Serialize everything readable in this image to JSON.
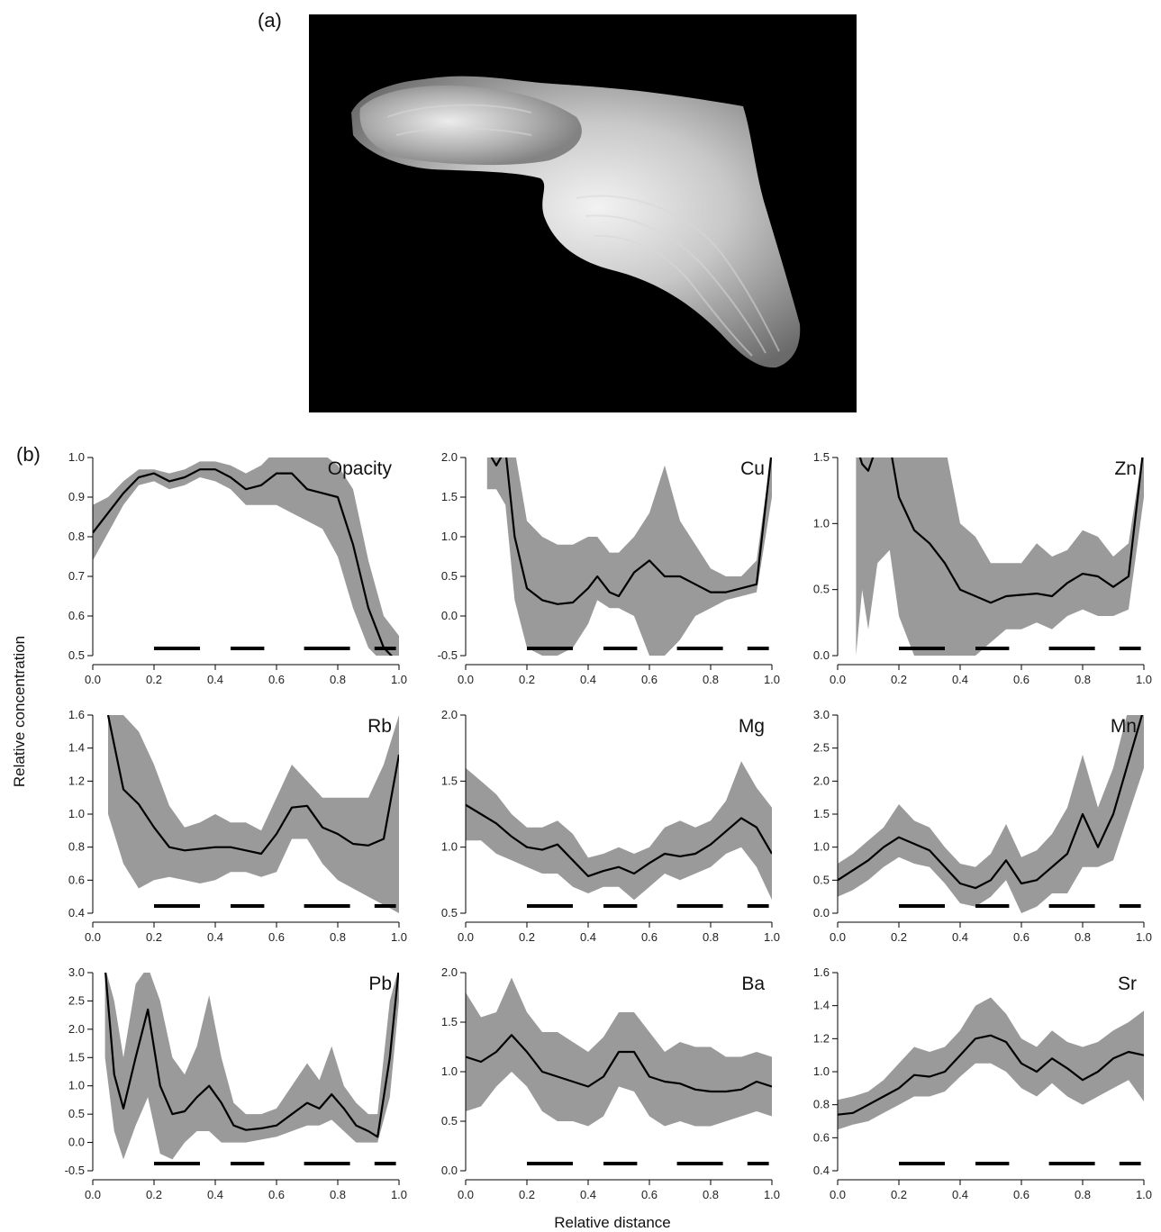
{
  "figure": {
    "label_a": "(a)",
    "label_b": "(b)",
    "xlabel": "Relative distance",
    "ylabel": "Relative concentration",
    "colors": {
      "band": "#9a9a9a",
      "line": "#000000",
      "photo_bg": "#000000"
    }
  },
  "photo": {
    "subject": "otolith section grayscale image",
    "icon": "otolith-image"
  },
  "chart_data": [
    {
      "type": "line",
      "title": "Opacity",
      "xlim": [
        0,
        1
      ],
      "ylim": [
        0.5,
        1.0
      ],
      "yticks": [
        0.5,
        0.6,
        0.7,
        0.8,
        0.9,
        1.0
      ],
      "ytick_labels": [
        "0.5",
        "0.6",
        "0.7",
        "0.8",
        "0.9",
        "1.0"
      ],
      "xticks": [
        0,
        0.2,
        0.4,
        0.6,
        0.8,
        1.0
      ],
      "xtick_labels": [
        "0.0",
        "0.2",
        "0.4",
        "0.6",
        "0.8",
        "1.0"
      ],
      "x": [
        0,
        0.05,
        0.1,
        0.15,
        0.2,
        0.25,
        0.3,
        0.35,
        0.4,
        0.45,
        0.5,
        0.55,
        0.6,
        0.65,
        0.7,
        0.75,
        0.8,
        0.85,
        0.9,
        0.95,
        1.0
      ],
      "y": [
        0.81,
        0.86,
        0.91,
        0.95,
        0.96,
        0.94,
        0.95,
        0.97,
        0.97,
        0.95,
        0.92,
        0.93,
        0.96,
        0.96,
        0.92,
        0.91,
        0.9,
        0.78,
        0.62,
        0.52,
        0.48
      ],
      "lower": [
        0.74,
        0.81,
        0.88,
        0.93,
        0.94,
        0.92,
        0.93,
        0.95,
        0.94,
        0.92,
        0.88,
        0.88,
        0.88,
        0.86,
        0.84,
        0.82,
        0.75,
        0.62,
        0.52,
        0.48,
        0.48
      ],
      "upper": [
        0.88,
        0.9,
        0.94,
        0.97,
        0.97,
        0.96,
        0.97,
        0.99,
        0.99,
        0.98,
        0.96,
        0.98,
        1.02,
        1.04,
        1.02,
        1.01,
        0.98,
        0.92,
        0.74,
        0.6,
        0.55
      ],
      "bars": [
        [
          0.2,
          0.35
        ],
        [
          0.45,
          0.56
        ],
        [
          0.69,
          0.84
        ],
        [
          0.92,
          0.99
        ]
      ]
    },
    {
      "type": "line",
      "title": "Cu",
      "xlim": [
        0,
        1
      ],
      "ylim": [
        -0.5,
        2.0
      ],
      "yticks": [
        -0.5,
        0.0,
        0.5,
        1.0,
        1.5,
        2.0
      ],
      "ytick_labels": [
        "-0.5",
        "0.0",
        "0.5",
        "1.0",
        "1.5",
        "2.0"
      ],
      "xticks": [
        0,
        0.2,
        0.4,
        0.6,
        0.8,
        1.0
      ],
      "xtick_labels": [
        "0.0",
        "0.2",
        "0.4",
        "0.6",
        "0.8",
        "1.0"
      ],
      "x": [
        0.07,
        0.1,
        0.13,
        0.16,
        0.2,
        0.25,
        0.3,
        0.35,
        0.4,
        0.43,
        0.47,
        0.5,
        0.55,
        0.6,
        0.65,
        0.7,
        0.75,
        0.8,
        0.85,
        0.9,
        0.95,
        1.0
      ],
      "y": [
        2.1,
        1.9,
        2.1,
        1.0,
        0.35,
        0.2,
        0.15,
        0.17,
        0.35,
        0.5,
        0.3,
        0.25,
        0.55,
        0.7,
        0.5,
        0.5,
        0.4,
        0.3,
        0.3,
        0.35,
        0.4,
        2.1
      ],
      "lower": [
        1.6,
        1.6,
        1.4,
        0.2,
        -0.4,
        -0.5,
        -0.5,
        -0.4,
        -0.1,
        0.2,
        0.1,
        0.1,
        0.0,
        -0.5,
        -0.5,
        -0.3,
        0.0,
        0.1,
        0.2,
        0.25,
        0.3,
        1.5
      ],
      "upper": [
        2.1,
        2.1,
        2.1,
        2.1,
        1.2,
        1.0,
        0.9,
        0.9,
        1.0,
        1.0,
        0.8,
        0.8,
        1.0,
        1.3,
        1.9,
        1.2,
        0.9,
        0.6,
        0.5,
        0.5,
        0.7,
        2.1
      ],
      "bars": [
        [
          0.2,
          0.35
        ],
        [
          0.45,
          0.56
        ],
        [
          0.69,
          0.84
        ],
        [
          0.92,
          0.99
        ]
      ]
    },
    {
      "type": "line",
      "title": "Zn",
      "xlim": [
        0,
        1
      ],
      "ylim": [
        0.0,
        1.5
      ],
      "yticks": [
        0.0,
        0.5,
        1.0,
        1.5
      ],
      "ytick_labels": [
        "0.0",
        "0.5",
        "1.0",
        "1.5"
      ],
      "xticks": [
        0,
        0.2,
        0.4,
        0.6,
        0.8,
        1.0
      ],
      "xtick_labels": [
        "0.0",
        "0.2",
        "0.4",
        "0.6",
        "0.8",
        "1.0"
      ],
      "x": [
        0.06,
        0.08,
        0.1,
        0.13,
        0.17,
        0.2,
        0.25,
        0.3,
        0.35,
        0.4,
        0.45,
        0.5,
        0.55,
        0.6,
        0.65,
        0.7,
        0.75,
        0.8,
        0.85,
        0.9,
        0.95,
        1.0
      ],
      "y": [
        1.6,
        1.45,
        1.4,
        1.6,
        1.6,
        1.2,
        0.95,
        0.85,
        0.7,
        0.5,
        0.45,
        0.4,
        0.45,
        0.46,
        0.47,
        0.45,
        0.55,
        0.62,
        0.6,
        0.52,
        0.6,
        1.6
      ],
      "lower": [
        0.0,
        0.5,
        0.2,
        0.7,
        0.8,
        0.3,
        0.0,
        0.0,
        0.0,
        0.0,
        0.0,
        0.1,
        0.2,
        0.2,
        0.25,
        0.2,
        0.3,
        0.35,
        0.3,
        0.3,
        0.35,
        1.2
      ],
      "upper": [
        1.6,
        1.6,
        1.6,
        1.6,
        1.6,
        1.6,
        1.6,
        1.6,
        1.6,
        1.0,
        0.9,
        0.7,
        0.7,
        0.7,
        0.85,
        0.75,
        0.8,
        0.95,
        0.9,
        0.75,
        0.85,
        1.6
      ],
      "bars": [
        [
          0.2,
          0.35
        ],
        [
          0.45,
          0.56
        ],
        [
          0.69,
          0.84
        ],
        [
          0.92,
          0.99
        ]
      ]
    },
    {
      "type": "line",
      "title": "Rb",
      "xlim": [
        0,
        1
      ],
      "ylim": [
        0.4,
        1.6
      ],
      "yticks": [
        0.4,
        0.6,
        0.8,
        1.0,
        1.2,
        1.4,
        1.6
      ],
      "ytick_labels": [
        "0.4",
        "0.6",
        "0.8",
        "1.0",
        "1.2",
        "1.4",
        "1.6"
      ],
      "xticks": [
        0,
        0.2,
        0.4,
        0.6,
        0.8,
        1.0
      ],
      "xtick_labels": [
        "0.0",
        "0.2",
        "0.4",
        "0.6",
        "0.8",
        "1.0"
      ],
      "x": [
        0.05,
        0.1,
        0.15,
        0.2,
        0.25,
        0.3,
        0.35,
        0.4,
        0.45,
        0.5,
        0.55,
        0.6,
        0.65,
        0.7,
        0.75,
        0.8,
        0.85,
        0.9,
        0.95,
        1.0
      ],
      "y": [
        1.6,
        1.15,
        1.06,
        0.92,
        0.8,
        0.78,
        0.79,
        0.8,
        0.8,
        0.78,
        0.76,
        0.88,
        1.04,
        1.05,
        0.92,
        0.88,
        0.82,
        0.81,
        0.85,
        1.36
      ],
      "lower": [
        1.0,
        0.7,
        0.55,
        0.6,
        0.62,
        0.6,
        0.58,
        0.6,
        0.65,
        0.65,
        0.62,
        0.65,
        0.85,
        0.85,
        0.7,
        0.6,
        0.55,
        0.5,
        0.45,
        0.4
      ],
      "upper": [
        1.6,
        1.6,
        1.5,
        1.3,
        1.05,
        0.92,
        0.95,
        1.0,
        0.95,
        0.95,
        0.9,
        1.1,
        1.3,
        1.2,
        1.1,
        1.1,
        1.1,
        1.1,
        1.3,
        1.6
      ],
      "bars": [
        [
          0.2,
          0.35
        ],
        [
          0.45,
          0.56
        ],
        [
          0.69,
          0.84
        ],
        [
          0.92,
          0.99
        ]
      ]
    },
    {
      "type": "line",
      "title": "Mg",
      "xlim": [
        0,
        1
      ],
      "ylim": [
        0.5,
        2.0
      ],
      "yticks": [
        0.5,
        1.0,
        1.5,
        2.0
      ],
      "ytick_labels": [
        "0.5",
        "1.0",
        "1.5",
        "2.0"
      ],
      "xticks": [
        0,
        0.2,
        0.4,
        0.6,
        0.8,
        1.0
      ],
      "xtick_labels": [
        "0.0",
        "0.2",
        "0.4",
        "0.6",
        "0.8",
        "1.0"
      ],
      "x": [
        0,
        0.05,
        0.1,
        0.15,
        0.2,
        0.25,
        0.3,
        0.35,
        0.4,
        0.45,
        0.5,
        0.55,
        0.6,
        0.65,
        0.7,
        0.75,
        0.8,
        0.85,
        0.9,
        0.95,
        1.0
      ],
      "y": [
        1.32,
        1.25,
        1.18,
        1.08,
        1.0,
        0.98,
        1.02,
        0.9,
        0.78,
        0.82,
        0.85,
        0.8,
        0.88,
        0.95,
        0.93,
        0.95,
        1.02,
        1.12,
        1.22,
        1.15,
        0.95
      ],
      "lower": [
        1.05,
        1.05,
        0.95,
        0.9,
        0.85,
        0.8,
        0.8,
        0.7,
        0.65,
        0.7,
        0.7,
        0.6,
        0.7,
        0.8,
        0.75,
        0.8,
        0.85,
        0.95,
        1.0,
        0.85,
        0.6
      ],
      "upper": [
        1.6,
        1.5,
        1.4,
        1.25,
        1.15,
        1.15,
        1.2,
        1.1,
        0.92,
        0.95,
        1.0,
        0.95,
        1.0,
        1.15,
        1.2,
        1.15,
        1.2,
        1.35,
        1.65,
        1.45,
        1.3
      ],
      "bars": [
        [
          0.2,
          0.35
        ],
        [
          0.45,
          0.56
        ],
        [
          0.69,
          0.84
        ],
        [
          0.92,
          0.99
        ]
      ]
    },
    {
      "type": "line",
      "title": "Mn",
      "xlim": [
        0,
        1
      ],
      "ylim": [
        0.0,
        3.0
      ],
      "yticks": [
        0.0,
        0.5,
        1.0,
        1.5,
        2.0,
        2.5,
        3.0
      ],
      "ytick_labels": [
        "0.0",
        "0.5",
        "1.0",
        "1.5",
        "2.0",
        "2.5",
        "3.0"
      ],
      "xticks": [
        0,
        0.2,
        0.4,
        0.6,
        0.8,
        1.0
      ],
      "xtick_labels": [
        "0.0",
        "0.2",
        "0.4",
        "0.6",
        "0.8",
        "1.0"
      ],
      "x": [
        0,
        0.05,
        0.1,
        0.15,
        0.2,
        0.25,
        0.3,
        0.35,
        0.4,
        0.45,
        0.5,
        0.55,
        0.6,
        0.65,
        0.7,
        0.75,
        0.8,
        0.85,
        0.9,
        0.95,
        1.0
      ],
      "y": [
        0.5,
        0.65,
        0.8,
        1.0,
        1.15,
        1.05,
        0.95,
        0.7,
        0.45,
        0.38,
        0.5,
        0.8,
        0.45,
        0.5,
        0.7,
        0.9,
        1.5,
        1.0,
        1.5,
        2.3,
        3.1
      ],
      "lower": [
        0.25,
        0.35,
        0.5,
        0.7,
        0.85,
        0.75,
        0.7,
        0.45,
        0.15,
        0.1,
        0.25,
        0.5,
        0.0,
        0.1,
        0.3,
        0.3,
        0.7,
        0.7,
        0.8,
        1.5,
        2.2
      ],
      "upper": [
        0.75,
        0.9,
        1.1,
        1.3,
        1.65,
        1.4,
        1.3,
        1.0,
        0.75,
        0.7,
        0.9,
        1.35,
        0.85,
        0.95,
        1.2,
        1.6,
        2.4,
        1.6,
        2.2,
        3.1,
        3.1
      ],
      "bars": [
        [
          0.2,
          0.35
        ],
        [
          0.45,
          0.56
        ],
        [
          0.69,
          0.84
        ],
        [
          0.92,
          0.99
        ]
      ]
    },
    {
      "type": "line",
      "title": "Pb",
      "xlim": [
        0,
        1
      ],
      "ylim": [
        -0.5,
        3.0
      ],
      "yticks": [
        -0.5,
        0.0,
        0.5,
        1.0,
        1.5,
        2.0,
        2.5,
        3.0
      ],
      "ytick_labels": [
        "-0.5",
        "0.0",
        "0.5",
        "1.0",
        "1.5",
        "2.0",
        "2.5",
        "3.0"
      ],
      "xticks": [
        0,
        0.2,
        0.4,
        0.6,
        0.8,
        1.0
      ],
      "xtick_labels": [
        "0.0",
        "0.2",
        "0.4",
        "0.6",
        "0.8",
        "1.0"
      ],
      "x": [
        0.04,
        0.07,
        0.1,
        0.14,
        0.18,
        0.22,
        0.26,
        0.3,
        0.34,
        0.38,
        0.42,
        0.46,
        0.5,
        0.55,
        0.6,
        0.65,
        0.7,
        0.74,
        0.78,
        0.82,
        0.86,
        0.9,
        0.93,
        0.97,
        1.0
      ],
      "y": [
        3.1,
        1.2,
        0.6,
        1.5,
        2.35,
        1.0,
        0.5,
        0.55,
        0.8,
        1.0,
        0.7,
        0.3,
        0.22,
        0.25,
        0.3,
        0.5,
        0.7,
        0.6,
        0.85,
        0.6,
        0.3,
        0.2,
        0.1,
        1.5,
        3.1
      ],
      "lower": [
        1.5,
        0.2,
        -0.3,
        0.3,
        0.8,
        -0.2,
        -0.3,
        0.0,
        0.2,
        0.2,
        0.0,
        0.0,
        0.0,
        0.05,
        0.1,
        0.2,
        0.3,
        0.3,
        0.4,
        0.2,
        0.0,
        0.0,
        0.0,
        0.8,
        2.5
      ],
      "upper": [
        3.1,
        2.5,
        1.5,
        2.8,
        3.1,
        2.5,
        1.5,
        1.2,
        1.7,
        2.6,
        1.5,
        0.7,
        0.5,
        0.5,
        0.6,
        1.0,
        1.4,
        1.1,
        1.7,
        1.0,
        0.7,
        0.5,
        0.5,
        2.5,
        3.1
      ],
      "bars": [
        [
          0.2,
          0.35
        ],
        [
          0.45,
          0.56
        ],
        [
          0.69,
          0.84
        ],
        [
          0.92,
          0.99
        ]
      ]
    },
    {
      "type": "line",
      "title": "Ba",
      "xlim": [
        0,
        1
      ],
      "ylim": [
        0.0,
        2.0
      ],
      "yticks": [
        0.0,
        0.5,
        1.0,
        1.5,
        2.0
      ],
      "ytick_labels": [
        "0.0",
        "0.5",
        "1.0",
        "1.5",
        "2.0"
      ],
      "xticks": [
        0,
        0.2,
        0.4,
        0.6,
        0.8,
        1.0
      ],
      "xtick_labels": [
        "0.0",
        "0.2",
        "0.4",
        "0.6",
        "0.8",
        "1.0"
      ],
      "x": [
        0,
        0.05,
        0.1,
        0.15,
        0.2,
        0.25,
        0.3,
        0.35,
        0.4,
        0.45,
        0.5,
        0.55,
        0.6,
        0.65,
        0.7,
        0.75,
        0.8,
        0.85,
        0.9,
        0.95,
        1.0
      ],
      "y": [
        1.15,
        1.1,
        1.2,
        1.37,
        1.2,
        1.0,
        0.95,
        0.9,
        0.85,
        0.95,
        1.2,
        1.2,
        0.95,
        0.9,
        0.88,
        0.82,
        0.8,
        0.8,
        0.82,
        0.9,
        0.85
      ],
      "lower": [
        0.6,
        0.65,
        0.85,
        1.0,
        0.85,
        0.6,
        0.5,
        0.5,
        0.45,
        0.55,
        0.85,
        0.8,
        0.55,
        0.45,
        0.5,
        0.45,
        0.45,
        0.5,
        0.55,
        0.6,
        0.55
      ],
      "upper": [
        1.8,
        1.55,
        1.6,
        1.95,
        1.6,
        1.4,
        1.4,
        1.3,
        1.2,
        1.35,
        1.6,
        1.6,
        1.4,
        1.2,
        1.3,
        1.25,
        1.25,
        1.15,
        1.15,
        1.2,
        1.15
      ],
      "bars": [
        [
          0.2,
          0.35
        ],
        [
          0.45,
          0.56
        ],
        [
          0.69,
          0.84
        ],
        [
          0.92,
          0.99
        ]
      ]
    },
    {
      "type": "line",
      "title": "Sr",
      "xlim": [
        0,
        1
      ],
      "ylim": [
        0.4,
        1.6
      ],
      "yticks": [
        0.4,
        0.6,
        0.8,
        1.0,
        1.2,
        1.4,
        1.6
      ],
      "ytick_labels": [
        "0.4",
        "0.6",
        "0.8",
        "1.0",
        "1.2",
        "1.4",
        "1.6"
      ],
      "xticks": [
        0,
        0.2,
        0.4,
        0.6,
        0.8,
        1.0
      ],
      "xtick_labels": [
        "0.0",
        "0.2",
        "0.4",
        "0.6",
        "0.8",
        "1.0"
      ],
      "x": [
        0,
        0.05,
        0.1,
        0.15,
        0.2,
        0.25,
        0.3,
        0.35,
        0.4,
        0.45,
        0.5,
        0.55,
        0.6,
        0.65,
        0.7,
        0.75,
        0.8,
        0.85,
        0.9,
        0.95,
        1.0
      ],
      "y": [
        0.74,
        0.75,
        0.8,
        0.85,
        0.9,
        0.98,
        0.97,
        1.0,
        1.1,
        1.2,
        1.22,
        1.18,
        1.05,
        1.0,
        1.08,
        1.02,
        0.95,
        1.0,
        1.08,
        1.12,
        1.1
      ],
      "lower": [
        0.65,
        0.68,
        0.7,
        0.75,
        0.8,
        0.85,
        0.85,
        0.88,
        0.97,
        1.05,
        1.05,
        1.0,
        0.9,
        0.85,
        0.93,
        0.85,
        0.8,
        0.85,
        0.9,
        0.95,
        0.82
      ],
      "upper": [
        0.83,
        0.85,
        0.88,
        0.95,
        1.05,
        1.15,
        1.12,
        1.15,
        1.25,
        1.4,
        1.45,
        1.35,
        1.2,
        1.15,
        1.25,
        1.18,
        1.15,
        1.18,
        1.25,
        1.3,
        1.37
      ],
      "bars": [
        [
          0.2,
          0.35
        ],
        [
          0.45,
          0.56
        ],
        [
          0.69,
          0.84
        ],
        [
          0.92,
          0.99
        ]
      ]
    }
  ]
}
